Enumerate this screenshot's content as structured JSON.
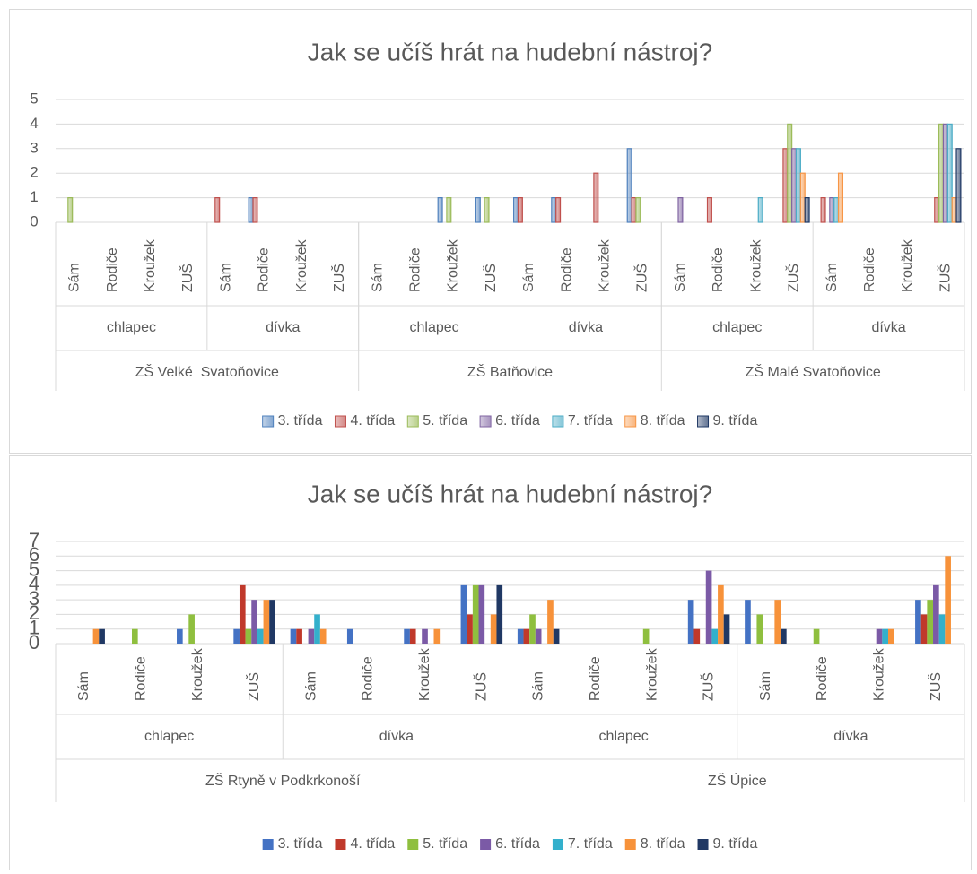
{
  "chart_data": [
    {
      "type": "bar",
      "title": "Jak se učíš hrát na hudební nástroj?",
      "schools": [
        {
          "name": "ZŠ Velké  Svatoňovice",
          "genders": [
            {
              "name": "chlapec",
              "methods": [
                "Sám",
                "Rodiče",
                "Kroužek",
                "ZUŠ"
              ]
            },
            {
              "name": "dívka",
              "methods": [
                "Sám",
                "Rodiče",
                "Kroužek",
                "ZUŠ"
              ]
            }
          ]
        },
        {
          "name": "ZŠ Batňovice",
          "genders": [
            {
              "name": "chlapec",
              "methods": [
                "Sám",
                "Rodiče",
                "Kroužek",
                "ZUŠ"
              ]
            },
            {
              "name": "dívka",
              "methods": [
                "Sám",
                "Rodiče",
                "Kroužek",
                "ZUŠ"
              ]
            }
          ]
        },
        {
          "name": "ZŠ Malé Svatoňovice",
          "genders": [
            {
              "name": "chlapec",
              "methods": [
                "Sám",
                "Rodiče",
                "Kroužek",
                "ZUŠ"
              ]
            },
            {
              "name": "dívka",
              "methods": [
                "Sám",
                "Rodiče",
                "Kroužek",
                "ZUŠ"
              ]
            }
          ]
        }
      ],
      "series": [
        {
          "name": "3. třída",
          "color": "#4f81bd",
          "values": [
            0,
            0,
            0,
            0,
            0,
            1,
            0,
            0,
            0,
            0,
            1,
            1,
            1,
            1,
            0,
            3,
            0,
            0,
            0,
            0,
            0,
            0,
            0,
            0
          ]
        },
        {
          "name": "4. třída",
          "color": "#c0504d",
          "values": [
            0,
            0,
            0,
            0,
            1,
            1,
            0,
            0,
            0,
            0,
            0,
            0,
            1,
            1,
            2,
            1,
            0,
            1,
            0,
            3,
            1,
            0,
            0,
            1
          ]
        },
        {
          "name": "5. třída",
          "color": "#9bbb59",
          "values": [
            1,
            0,
            0,
            0,
            0,
            0,
            0,
            0,
            0,
            0,
            1,
            1,
            0,
            0,
            0,
            1,
            0,
            0,
            0,
            4,
            0,
            0,
            0,
            4
          ]
        },
        {
          "name": "6. třída",
          "color": "#8064a2",
          "values": [
            0,
            0,
            0,
            0,
            0,
            0,
            0,
            0,
            0,
            0,
            0,
            0,
            0,
            0,
            0,
            0,
            1,
            0,
            0,
            3,
            1,
            0,
            0,
            4
          ]
        },
        {
          "name": "7. třída",
          "color": "#4bacc6",
          "values": [
            0,
            0,
            0,
            0,
            0,
            0,
            0,
            0,
            0,
            0,
            0,
            0,
            0,
            0,
            0,
            0,
            0,
            0,
            1,
            3,
            1,
            0,
            0,
            4
          ]
        },
        {
          "name": "8. třída",
          "color": "#f79646",
          "values": [
            0,
            0,
            0,
            0,
            0,
            0,
            0,
            0,
            0,
            0,
            0,
            0,
            0,
            0,
            0,
            0,
            0,
            0,
            0,
            2,
            2,
            0,
            0,
            1
          ]
        },
        {
          "name": "9. třída",
          "color": "#1f3864",
          "values": [
            0,
            0,
            0,
            0,
            0,
            0,
            0,
            0,
            0,
            0,
            0,
            0,
            0,
            0,
            0,
            0,
            0,
            0,
            0,
            1,
            0,
            0,
            0,
            3
          ]
        }
      ],
      "ylim": [
        0,
        5
      ],
      "yticks": [
        0,
        1,
        2,
        3,
        4,
        5
      ],
      "grid": true,
      "legend": "bottom"
    },
    {
      "type": "bar",
      "title": "Jak se učíš hrát na hudební nástroj?",
      "schools": [
        {
          "name": "ZŠ Rtyně v Podkrkonoší",
          "genders": [
            {
              "name": "chlapec",
              "methods": [
                "Sám",
                "Rodiče",
                "Kroužek",
                "ZUŠ"
              ]
            },
            {
              "name": "dívka",
              "methods": [
                "Sám",
                "Rodiče",
                "Kroužek",
                "ZUŠ"
              ]
            }
          ]
        },
        {
          "name": "ZŠ Úpice",
          "genders": [
            {
              "name": "chlapec",
              "methods": [
                "Sám",
                "Rodiče",
                "Kroužek",
                "ZUŠ"
              ]
            },
            {
              "name": "dívka",
              "methods": [
                "Sám",
                "Rodiče",
                "Kroužek",
                "ZUŠ"
              ]
            }
          ]
        }
      ],
      "series": [
        {
          "name": "3. třída",
          "color": "#4472c4",
          "values": [
            0,
            0,
            1,
            1,
            1,
            1,
            1,
            4,
            1,
            0,
            0,
            3,
            3,
            0,
            0,
            3
          ]
        },
        {
          "name": "4. třída",
          "color": "#c0392b",
          "values": [
            0,
            0,
            0,
            4,
            1,
            0,
            1,
            2,
            1,
            0,
            0,
            1,
            0,
            0,
            0,
            2
          ]
        },
        {
          "name": "5. třída",
          "color": "#8fbf3f",
          "values": [
            0,
            1,
            2,
            1,
            0,
            0,
            0,
            4,
            2,
            0,
            1,
            0,
            2,
            1,
            0,
            3
          ]
        },
        {
          "name": "6. třída",
          "color": "#7b5aa6",
          "values": [
            0,
            0,
            0,
            3,
            1,
            0,
            1,
            4,
            1,
            0,
            0,
            5,
            0,
            0,
            1,
            4
          ]
        },
        {
          "name": "7. třída",
          "color": "#33b0cc",
          "values": [
            0,
            0,
            0,
            1,
            2,
            0,
            0,
            0,
            0,
            0,
            0,
            1,
            0,
            0,
            1,
            2
          ]
        },
        {
          "name": "8. třída",
          "color": "#f7923a",
          "values": [
            1,
            0,
            0,
            3,
            1,
            0,
            1,
            2,
            3,
            0,
            0,
            4,
            3,
            0,
            1,
            6
          ]
        },
        {
          "name": "9. třída",
          "color": "#203864",
          "values": [
            1,
            0,
            0,
            3,
            0,
            0,
            0,
            4,
            1,
            0,
            0,
            2,
            1,
            0,
            0,
            0
          ]
        }
      ],
      "ylim": [
        0,
        7
      ],
      "yticks": [
        0,
        1,
        2,
        3,
        4,
        5,
        6,
        7
      ],
      "grid": true,
      "legend": "bottom"
    }
  ]
}
